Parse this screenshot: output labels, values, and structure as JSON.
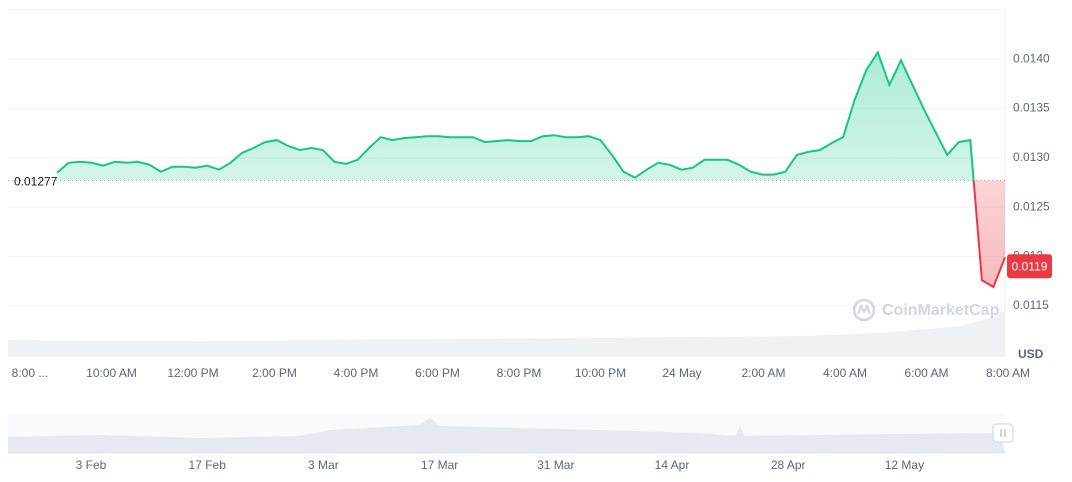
{
  "chart_data": {
    "type": "line",
    "currency": "USD",
    "watermark": "CoinMarketCap",
    "reference_value": 0.01277,
    "current_price": 0.0119,
    "up_color": "#16c784",
    "down_color": "#ea3943",
    "ylim": [
      0.011,
      0.0145
    ],
    "yticks": [
      0.0115,
      0.012,
      0.0125,
      {
        "value": 0.013,
        "label": "0.0130"
      },
      0.0135,
      {
        "value": 0.014,
        "label": "0.0140"
      }
    ],
    "x_labels": [
      "8:00 ...",
      "10:00 AM",
      "12:00 PM",
      "2:00 PM",
      "4:00 PM",
      "6:00 PM",
      "8:00 PM",
      "10:00 PM",
      "24 May",
      "2:00 AM",
      "4:00 AM",
      "6:00 AM",
      "8:00 AM"
    ],
    "navigator_labels": [
      "3 Feb",
      "17 Feb",
      "3 Mar",
      "17 Mar",
      "31 Mar",
      "14 Apr",
      "28 Apr",
      "12 May"
    ],
    "values": [
      0.01285,
      0.01295,
      0.01296,
      0.01295,
      0.01292,
      0.01296,
      0.01295,
      0.01296,
      0.01293,
      0.01286,
      0.01291,
      0.01291,
      0.0129,
      0.01292,
      0.01288,
      0.01295,
      0.01305,
      0.0131,
      0.01316,
      0.01318,
      0.01312,
      0.01308,
      0.0131,
      0.01308,
      0.01296,
      0.01294,
      0.01298,
      0.0131,
      0.01321,
      0.01318,
      0.0132,
      0.01321,
      0.01322,
      0.01322,
      0.01321,
      0.01321,
      0.01321,
      0.01316,
      0.01317,
      0.01318,
      0.01317,
      0.01317,
      0.01322,
      0.01323,
      0.01321,
      0.01321,
      0.01322,
      0.01318,
      0.01303,
      0.01286,
      0.0128,
      0.01288,
      0.01295,
      0.01293,
      0.01288,
      0.0129,
      0.01298,
      0.01298,
      0.01298,
      0.01293,
      0.01286,
      0.01283,
      0.01283,
      0.01286,
      0.01303,
      0.01306,
      0.01308,
      0.01315,
      0.01321,
      0.01359,
      0.01389,
      0.01407,
      0.01374,
      0.01399,
      0.01374,
      0.01349,
      0.01326,
      0.01303,
      0.01316,
      0.01318,
      0.01176,
      0.01169,
      0.01199
    ]
  }
}
